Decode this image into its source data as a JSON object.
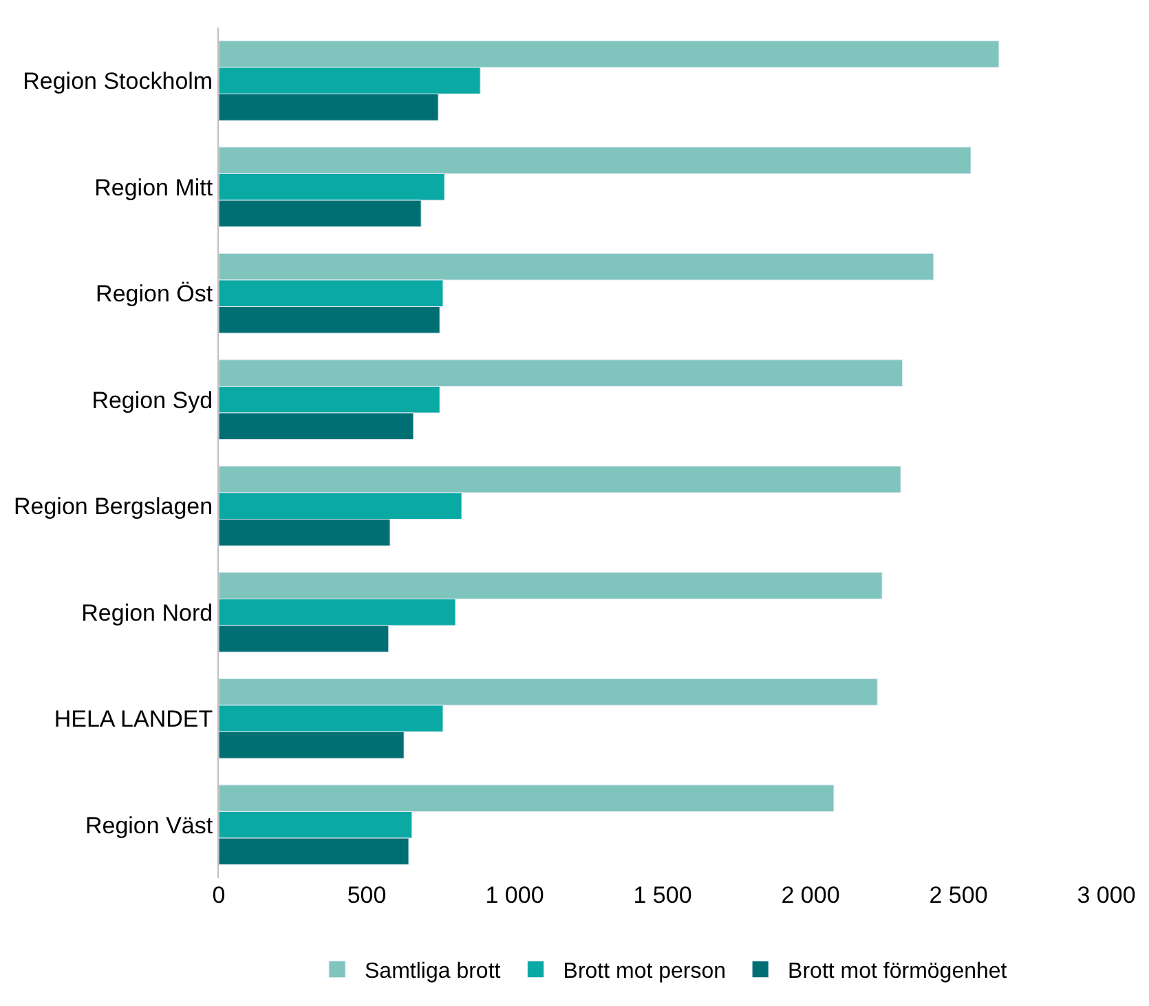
{
  "chart_data": {
    "type": "bar",
    "orientation": "horizontal",
    "categories": [
      "Region Stockholm",
      "Region Mitt",
      "Region Öst",
      "Region Syd",
      "Region Bergslagen",
      "Region Nord",
      "HELA LANDET",
      "Region Väst"
    ],
    "series": [
      {
        "name": "Samtliga brott",
        "color": "#7fc4bd",
        "values": [
          2637,
          2542,
          2416,
          2311,
          2305,
          2242,
          2226,
          2079
        ]
      },
      {
        "name": "Brott mot person",
        "color": "#0aa9a4",
        "values": [
          884,
          763,
          758,
          747,
          821,
          800,
          758,
          653
        ]
      },
      {
        "name": "Brott mot förmögenhet",
        "color": "#006f73",
        "values": [
          742,
          684,
          747,
          658,
          579,
          574,
          626,
          642
        ]
      }
    ],
    "xlim": [
      0,
      3000
    ],
    "xticks": [
      0,
      {
        "value": 500,
        "label": "500"
      },
      {
        "value": 1000,
        "label": "1 000"
      },
      {
        "value": 1500,
        "label": "1 500"
      },
      {
        "value": 2000,
        "label": "2 000"
      },
      {
        "value": 2500,
        "label": "2 500"
      },
      {
        "value": 3000,
        "label": "3 000"
      }
    ],
    "grid": false,
    "legend": "bottom"
  }
}
